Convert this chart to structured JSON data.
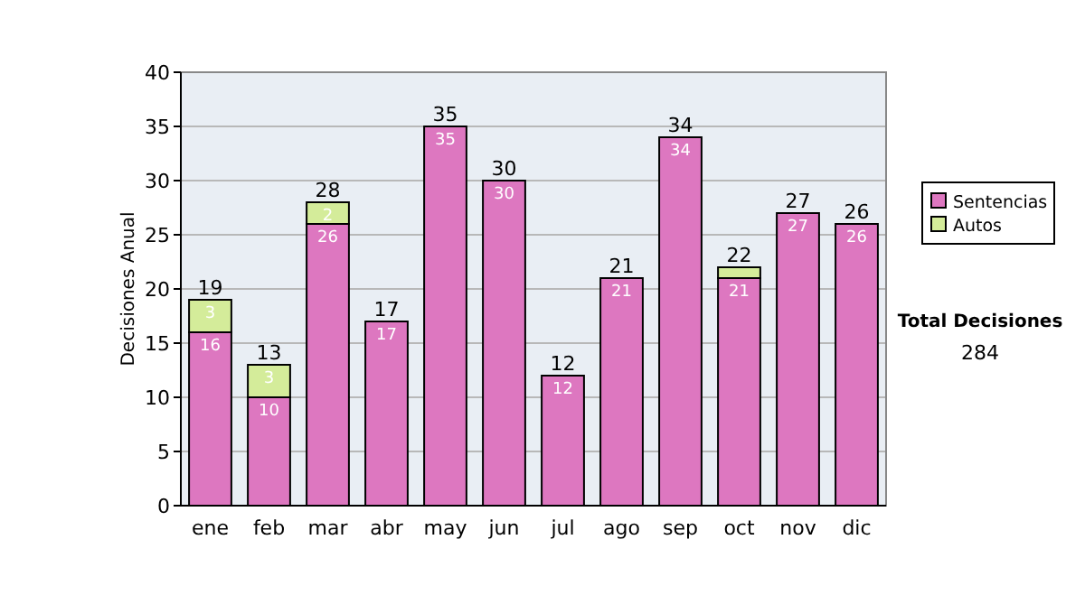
{
  "chart_data": {
    "type": "bar",
    "stacked": true,
    "ylabel": "Decisiones Anual",
    "categories": [
      "ene",
      "feb",
      "mar",
      "abr",
      "may",
      "jun",
      "jul",
      "ago",
      "sep",
      "oct",
      "nov",
      "dic"
    ],
    "series": [
      {
        "name": "Sentencias",
        "color": "#dd77c0",
        "values": [
          16,
          10,
          26,
          17,
          35,
          30,
          12,
          21,
          34,
          21,
          27,
          26
        ],
        "value_labels": [
          "16",
          "10",
          "26",
          "17",
          "35",
          "30",
          "12",
          "21",
          "34",
          "21",
          "27",
          "26"
        ]
      },
      {
        "name": "Autos",
        "color": "#d4ec9a",
        "values": [
          3,
          3,
          2,
          0,
          0,
          0,
          0,
          0,
          0,
          1,
          0,
          0
        ],
        "value_labels": [
          "3",
          "3",
          "2",
          null,
          null,
          null,
          null,
          null,
          null,
          null,
          null,
          null
        ]
      }
    ],
    "totals": [
      "19",
      "13",
      "28",
      "17",
      "35",
      "30",
      "12",
      "21",
      "34",
      "22",
      "27",
      "26"
    ],
    "ylim": [
      0,
      40
    ],
    "yticks": [
      0,
      5,
      10,
      15,
      20,
      25,
      30,
      35,
      40
    ],
    "grid": "y",
    "legend": "right",
    "annotations": [
      "Total Decisiones",
      "284"
    ]
  }
}
